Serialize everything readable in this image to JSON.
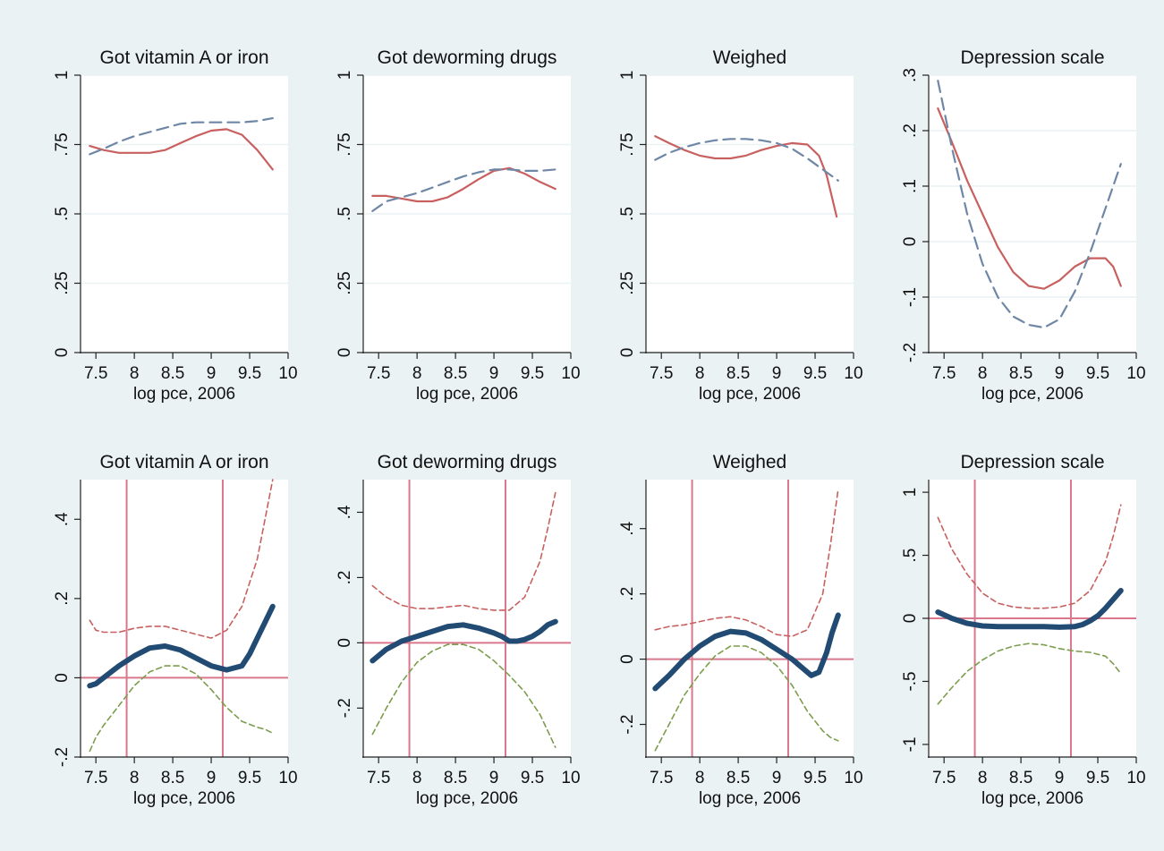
{
  "colors": {
    "background": "#eaf2f3",
    "panel": "#ffffff",
    "grid": "#eaf2f3",
    "top_series_solid": "#c8605f",
    "top_series_dashed": "#6f87a6",
    "bottom_estimate": "#224b73",
    "bottom_upper_ci": "#c8605f",
    "bottom_lower_ci": "#7b9d4c",
    "reference_lines": "#d9778c"
  },
  "chart_data": [
    {
      "type": "line",
      "row": 1,
      "col": 1,
      "title": "Got vitamin A or iron",
      "xlabel": "log pce, 2006",
      "ylabel": "",
      "xlim": [
        7.3,
        10
      ],
      "ylim": [
        0,
        1
      ],
      "x_ticks": [
        "7.5",
        "8",
        "8.5",
        "9",
        "9.5",
        "10"
      ],
      "y_ticks": [
        "0",
        ".25",
        ".5",
        ".75",
        "1"
      ],
      "grid": true,
      "series": [
        {
          "style": "solid",
          "x": [
            7.42,
            7.6,
            7.8,
            8.0,
            8.2,
            8.4,
            8.6,
            8.8,
            9.0,
            9.2,
            9.4,
            9.6,
            9.8
          ],
          "y": [
            0.745,
            0.73,
            0.72,
            0.72,
            0.72,
            0.73,
            0.755,
            0.78,
            0.8,
            0.805,
            0.785,
            0.73,
            0.66
          ]
        },
        {
          "style": "dashed",
          "x": [
            7.42,
            7.6,
            7.8,
            8.0,
            8.2,
            8.4,
            8.6,
            8.8,
            9.0,
            9.2,
            9.4,
            9.6,
            9.8
          ],
          "y": [
            0.715,
            0.735,
            0.76,
            0.78,
            0.795,
            0.81,
            0.825,
            0.83,
            0.83,
            0.83,
            0.83,
            0.835,
            0.845
          ]
        }
      ]
    },
    {
      "type": "line",
      "row": 1,
      "col": 2,
      "title": "Got deworming drugs",
      "xlabel": "log pce, 2006",
      "ylabel": "",
      "xlim": [
        7.3,
        10
      ],
      "ylim": [
        0,
        1
      ],
      "x_ticks": [
        "7.5",
        "8",
        "8.5",
        "9",
        "9.5",
        "10"
      ],
      "y_ticks": [
        "0",
        ".25",
        ".5",
        ".75",
        "1"
      ],
      "grid": true,
      "series": [
        {
          "style": "solid",
          "x": [
            7.42,
            7.6,
            7.8,
            8.0,
            8.2,
            8.4,
            8.6,
            8.8,
            9.0,
            9.2,
            9.4,
            9.6,
            9.8
          ],
          "y": [
            0.565,
            0.565,
            0.555,
            0.545,
            0.545,
            0.56,
            0.59,
            0.625,
            0.655,
            0.665,
            0.645,
            0.615,
            0.59
          ]
        },
        {
          "style": "dashed",
          "x": [
            7.42,
            7.6,
            7.8,
            8.0,
            8.2,
            8.4,
            8.6,
            8.8,
            9.0,
            9.2,
            9.4,
            9.6,
            9.8
          ],
          "y": [
            0.51,
            0.545,
            0.56,
            0.575,
            0.595,
            0.615,
            0.635,
            0.65,
            0.66,
            0.66,
            0.655,
            0.655,
            0.66
          ]
        }
      ]
    },
    {
      "type": "line",
      "row": 1,
      "col": 3,
      "title": "Weighed",
      "xlabel": "log pce, 2006",
      "ylabel": "",
      "xlim": [
        7.3,
        10
      ],
      "ylim": [
        0,
        1
      ],
      "x_ticks": [
        "7.5",
        "8",
        "8.5",
        "9",
        "9.5",
        "10"
      ],
      "y_ticks": [
        "0",
        ".25",
        ".5",
        ".75",
        "1"
      ],
      "grid": true,
      "series": [
        {
          "style": "solid",
          "x": [
            7.42,
            7.6,
            7.8,
            8.0,
            8.2,
            8.4,
            8.6,
            8.8,
            9.0,
            9.2,
            9.4,
            9.55,
            9.65,
            9.72,
            9.78
          ],
          "y": [
            0.78,
            0.755,
            0.73,
            0.71,
            0.7,
            0.7,
            0.71,
            0.73,
            0.745,
            0.755,
            0.75,
            0.71,
            0.64,
            0.56,
            0.49
          ]
        },
        {
          "style": "dashed",
          "x": [
            7.42,
            7.6,
            7.8,
            8.0,
            8.2,
            8.4,
            8.6,
            8.8,
            9.0,
            9.2,
            9.4,
            9.6,
            9.8
          ],
          "y": [
            0.695,
            0.72,
            0.74,
            0.755,
            0.765,
            0.77,
            0.77,
            0.765,
            0.755,
            0.735,
            0.7,
            0.66,
            0.62
          ]
        }
      ]
    },
    {
      "type": "line",
      "row": 1,
      "col": 4,
      "title": "Depression scale",
      "xlabel": "log pce, 2006",
      "ylabel": "",
      "xlim": [
        7.3,
        10
      ],
      "ylim": [
        -0.2,
        0.3
      ],
      "x_ticks": [
        "7.5",
        "8",
        "8.5",
        "9",
        "9.5",
        "10"
      ],
      "y_ticks": [
        "-.2",
        "-.1",
        "0",
        ".1",
        ".2",
        ".3"
      ],
      "grid": true,
      "series": [
        {
          "style": "solid",
          "x": [
            7.42,
            7.6,
            7.8,
            8.0,
            8.2,
            8.4,
            8.6,
            8.8,
            9.0,
            9.2,
            9.4,
            9.6,
            9.7,
            9.8
          ],
          "y": [
            0.24,
            0.18,
            0.11,
            0.05,
            -0.01,
            -0.055,
            -0.08,
            -0.085,
            -0.07,
            -0.045,
            -0.03,
            -0.03,
            -0.045,
            -0.08
          ]
        },
        {
          "style": "dashed",
          "x": [
            7.42,
            7.6,
            7.8,
            8.0,
            8.2,
            8.4,
            8.6,
            8.8,
            9.0,
            9.2,
            9.4,
            9.6,
            9.8
          ],
          "y": [
            0.29,
            0.17,
            0.05,
            -0.04,
            -0.1,
            -0.135,
            -0.15,
            -0.155,
            -0.14,
            -0.09,
            -0.02,
            0.06,
            0.14
          ]
        }
      ]
    },
    {
      "type": "line",
      "row": 2,
      "col": 1,
      "title": "Got vitamin A or iron",
      "xlabel": "log pce, 2006",
      "ylabel": "",
      "xlim": [
        7.3,
        10
      ],
      "ylim": [
        -0.2,
        0.5
      ],
      "x_ticks": [
        "7.5",
        "8",
        "8.5",
        "9",
        "9.5",
        "10"
      ],
      "y_ticks": [
        "-.2",
        "0",
        ".2",
        ".4"
      ],
      "grid": false,
      "hline": 0,
      "vlines": [
        7.9,
        9.15
      ],
      "series": [
        {
          "style": "estimate",
          "x": [
            7.42,
            7.5,
            7.6,
            7.8,
            8.0,
            8.2,
            8.4,
            8.6,
            8.8,
            9.0,
            9.1,
            9.2,
            9.3,
            9.4,
            9.5,
            9.6,
            9.7,
            9.8
          ],
          "y": [
            -0.02,
            -0.015,
            0.0,
            0.03,
            0.055,
            0.075,
            0.08,
            0.07,
            0.05,
            0.03,
            0.025,
            0.02,
            0.025,
            0.03,
            0.06,
            0.1,
            0.14,
            0.18
          ]
        },
        {
          "style": "upper_ci",
          "x": [
            7.42,
            7.5,
            7.6,
            7.8,
            8.0,
            8.2,
            8.4,
            8.6,
            8.8,
            9.0,
            9.2,
            9.4,
            9.6,
            9.7,
            9.8
          ],
          "y": [
            0.145,
            0.12,
            0.115,
            0.115,
            0.125,
            0.13,
            0.13,
            0.12,
            0.11,
            0.1,
            0.12,
            0.18,
            0.3,
            0.4,
            0.5
          ]
        },
        {
          "style": "lower_ci",
          "x": [
            7.42,
            7.5,
            7.6,
            7.8,
            8.0,
            8.2,
            8.4,
            8.6,
            8.8,
            9.0,
            9.2,
            9.4,
            9.6,
            9.7,
            9.8
          ],
          "y": [
            -0.185,
            -0.15,
            -0.12,
            -0.07,
            -0.02,
            0.015,
            0.03,
            0.03,
            0.01,
            -0.03,
            -0.075,
            -0.11,
            -0.125,
            -0.13,
            -0.14
          ]
        }
      ]
    },
    {
      "type": "line",
      "row": 2,
      "col": 2,
      "title": "Got deworming drugs",
      "xlabel": "log pce, 2006",
      "ylabel": "",
      "xlim": [
        7.3,
        10
      ],
      "ylim": [
        -0.35,
        0.5
      ],
      "x_ticks": [
        "7.5",
        "8",
        "8.5",
        "9",
        "9.5",
        "10"
      ],
      "y_ticks": [
        "-.2",
        "0",
        ".2",
        ".4"
      ],
      "grid": false,
      "hline": 0,
      "vlines": [
        7.9,
        9.15
      ],
      "series": [
        {
          "style": "estimate",
          "x": [
            7.42,
            7.6,
            7.8,
            8.0,
            8.2,
            8.4,
            8.6,
            8.8,
            9.0,
            9.1,
            9.2,
            9.3,
            9.4,
            9.5,
            9.6,
            9.7,
            9.8
          ],
          "y": [
            -0.055,
            -0.02,
            0.005,
            0.02,
            0.035,
            0.05,
            0.055,
            0.045,
            0.03,
            0.02,
            0.005,
            0.005,
            0.01,
            0.02,
            0.035,
            0.055,
            0.065
          ]
        },
        {
          "style": "upper_ci",
          "x": [
            7.42,
            7.6,
            7.8,
            8.0,
            8.2,
            8.4,
            8.6,
            8.8,
            9.0,
            9.2,
            9.4,
            9.6,
            9.7,
            9.8
          ],
          "y": [
            0.175,
            0.14,
            0.115,
            0.105,
            0.105,
            0.11,
            0.115,
            0.105,
            0.1,
            0.1,
            0.14,
            0.25,
            0.35,
            0.46
          ]
        },
        {
          "style": "lower_ci",
          "x": [
            7.42,
            7.6,
            7.8,
            8.0,
            8.2,
            8.4,
            8.6,
            8.8,
            9.0,
            9.2,
            9.4,
            9.6,
            9.7,
            9.8
          ],
          "y": [
            -0.28,
            -0.2,
            -0.12,
            -0.06,
            -0.025,
            -0.005,
            -0.005,
            -0.02,
            -0.055,
            -0.1,
            -0.15,
            -0.22,
            -0.27,
            -0.32
          ]
        }
      ]
    },
    {
      "type": "line",
      "row": 2,
      "col": 3,
      "title": "Weighed",
      "xlabel": "log pce, 2006",
      "ylabel": "",
      "xlim": [
        7.3,
        10
      ],
      "ylim": [
        -0.3,
        0.55
      ],
      "x_ticks": [
        "7.5",
        "8",
        "8.5",
        "9",
        "9.5",
        "10"
      ],
      "y_ticks": [
        "-.2",
        "0",
        ".2",
        ".4"
      ],
      "grid": false,
      "hline": 0,
      "vlines": [
        7.9,
        9.15
      ],
      "series": [
        {
          "style": "estimate",
          "x": [
            7.42,
            7.6,
            7.8,
            8.0,
            8.2,
            8.4,
            8.6,
            8.8,
            9.0,
            9.2,
            9.35,
            9.45,
            9.55,
            9.65,
            9.72,
            9.8
          ],
          "y": [
            -0.09,
            -0.05,
            0.0,
            0.04,
            0.07,
            0.085,
            0.08,
            0.06,
            0.03,
            0.0,
            -0.03,
            -0.05,
            -0.04,
            0.02,
            0.08,
            0.135
          ]
        },
        {
          "style": "upper_ci",
          "x": [
            7.42,
            7.6,
            7.8,
            8.0,
            8.2,
            8.4,
            8.6,
            8.8,
            9.0,
            9.2,
            9.4,
            9.6,
            9.7,
            9.8
          ],
          "y": [
            0.09,
            0.1,
            0.105,
            0.115,
            0.125,
            0.13,
            0.12,
            0.1,
            0.075,
            0.07,
            0.09,
            0.2,
            0.35,
            0.52
          ]
        },
        {
          "style": "lower_ci",
          "x": [
            7.42,
            7.6,
            7.8,
            8.0,
            8.2,
            8.4,
            8.6,
            8.8,
            9.0,
            9.2,
            9.4,
            9.6,
            9.7,
            9.8
          ],
          "y": [
            -0.28,
            -0.2,
            -0.11,
            -0.045,
            0.01,
            0.04,
            0.04,
            0.02,
            -0.02,
            -0.08,
            -0.16,
            -0.22,
            -0.24,
            -0.25
          ]
        }
      ]
    },
    {
      "type": "line",
      "row": 2,
      "col": 4,
      "title": "Depression scale",
      "xlabel": "log pce, 2006",
      "ylabel": "",
      "xlim": [
        7.3,
        10
      ],
      "ylim": [
        -1.1,
        1.1
      ],
      "x_ticks": [
        "7.5",
        "8",
        "8.5",
        "9",
        "9.5",
        "10"
      ],
      "y_ticks": [
        "-1",
        "-.5",
        "0",
        ".5",
        "1"
      ],
      "grid": false,
      "hline": 0,
      "vlines": [
        7.9,
        9.15
      ],
      "series": [
        {
          "style": "estimate",
          "x": [
            7.42,
            7.6,
            7.8,
            8.0,
            8.2,
            8.4,
            8.6,
            8.8,
            9.0,
            9.2,
            9.3,
            9.4,
            9.5,
            9.6,
            9.7,
            9.8
          ],
          "y": [
            0.05,
            0.0,
            -0.04,
            -0.06,
            -0.065,
            -0.065,
            -0.065,
            -0.065,
            -0.07,
            -0.065,
            -0.05,
            -0.02,
            0.02,
            0.08,
            0.15,
            0.22
          ]
        },
        {
          "style": "upper_ci",
          "x": [
            7.42,
            7.6,
            7.8,
            8.0,
            8.2,
            8.4,
            8.6,
            8.8,
            9.0,
            9.2,
            9.4,
            9.6,
            9.7,
            9.8
          ],
          "y": [
            0.8,
            0.55,
            0.35,
            0.2,
            0.12,
            0.09,
            0.08,
            0.08,
            0.09,
            0.12,
            0.22,
            0.45,
            0.65,
            0.9
          ]
        },
        {
          "style": "lower_ci",
          "x": [
            7.42,
            7.6,
            7.8,
            8.0,
            8.2,
            8.4,
            8.6,
            8.8,
            9.0,
            9.2,
            9.4,
            9.6,
            9.7,
            9.8
          ],
          "y": [
            -0.68,
            -0.55,
            -0.42,
            -0.33,
            -0.26,
            -0.22,
            -0.2,
            -0.21,
            -0.24,
            -0.26,
            -0.27,
            -0.3,
            -0.36,
            -0.44
          ]
        }
      ]
    }
  ]
}
